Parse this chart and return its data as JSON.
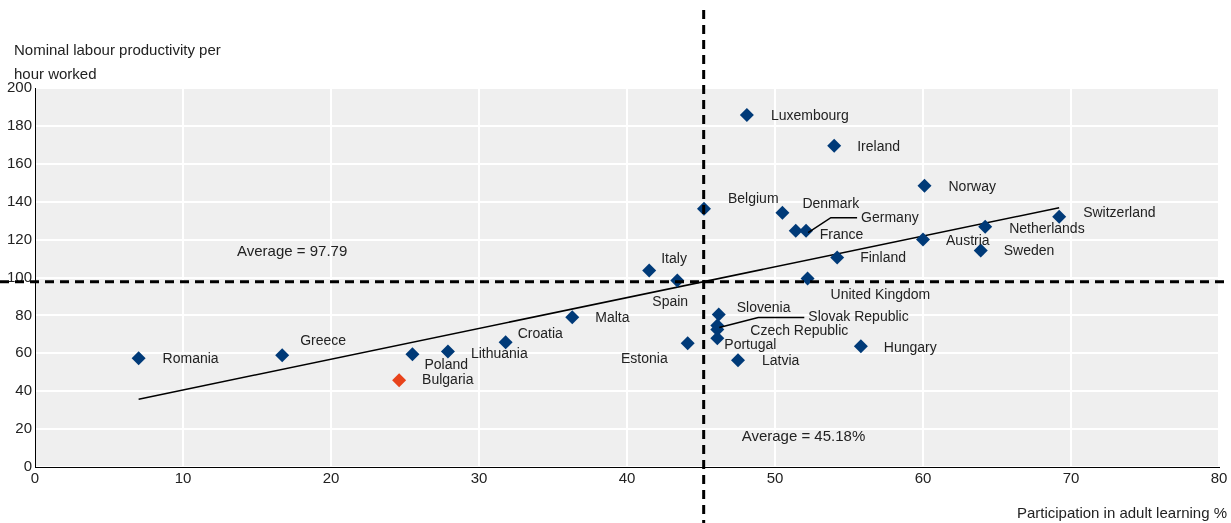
{
  "chart_data": {
    "type": "scatter",
    "xlabel": "Participation in adult learning %",
    "ylabel": "Nominal labour productivity per hour worked",
    "xlim": [
      0,
      80
    ],
    "xticks": [
      0,
      10,
      20,
      30,
      40,
      50,
      60,
      70,
      80
    ],
    "ylim": [
      0,
      200
    ],
    "yticks": [
      0,
      20,
      40,
      60,
      80,
      100,
      120,
      140,
      160,
      180,
      200
    ],
    "grid": true,
    "legend": false,
    "series": [
      {
        "marker": "diamond",
        "color": "#003a78",
        "colors": [
          "#003a78",
          "#003a78",
          "#003a78",
          "#e8431b",
          "#003a78",
          "#003a78",
          "#003a78",
          "#003a78",
          "#003a78",
          "#003a78",
          "#003a78",
          "#003a78",
          "#003a78",
          "#003a78",
          "#003a78",
          "#003a78",
          "#003a78",
          "#003a78",
          "#003a78",
          "#003a78",
          "#003a78",
          "#003a78",
          "#003a78",
          "#003a78",
          "#003a78",
          "#003a78",
          "#003a78",
          "#003a78",
          "#003a78"
        ],
        "x": [
          7.0,
          16.7,
          25.5,
          24.6,
          27.9,
          31.8,
          36.3,
          41.5,
          43.4,
          44.1,
          45.2,
          50.5,
          51.4,
          52.1,
          54.2,
          52.2,
          48.1,
          54.0,
          60.1,
          60.0,
          63.9,
          64.2,
          69.2,
          46.2,
          46.1,
          46.1,
          46.1,
          47.5,
          55.8
        ],
        "values": [
          57.4,
          59,
          59.5,
          45.8,
          61,
          65.8,
          79,
          103.7,
          98.4,
          65.3,
          136.3,
          134.2,
          124.7,
          124.7,
          110.5,
          99.5,
          185.8,
          169.5,
          148.4,
          120,
          114.2,
          126.8,
          132.1,
          80.5,
          74.7,
          72.6,
          67.9,
          56.3,
          63.7
        ]
      },
      {
        "type": "line",
        "color": "#000000",
        "x": [
          7.0,
          69.2
        ],
        "values": [
          35.8,
          136.8
        ]
      }
    ],
    "ref_lines": [
      {
        "axis": "y",
        "value": 97.79,
        "label": "Average = 97.79",
        "line_style": "dashed",
        "color": "#000000"
      },
      {
        "axis": "x",
        "value": 45.18,
        "label": "Average = 45.18%",
        "line_style": "dashed",
        "color": "#000000"
      }
    ],
    "annotations": [
      {
        "text": "Romania",
        "x": 7.0,
        "y": 57.4
      },
      {
        "text": "Greece",
        "x": 16.7,
        "y": 59
      },
      {
        "text": "Poland",
        "x": 25.5,
        "y": 59.5
      },
      {
        "text": "Bulgaria",
        "x": 24.6,
        "y": 45.8
      },
      {
        "text": "Lithuania",
        "x": 27.9,
        "y": 61
      },
      {
        "text": "Croatia",
        "x": 31.8,
        "y": 65.8
      },
      {
        "text": "Malta",
        "x": 36.3,
        "y": 79
      },
      {
        "text": "Italy",
        "x": 41.5,
        "y": 103.7
      },
      {
        "text": "Spain",
        "x": 43.4,
        "y": 98.4
      },
      {
        "text": "Estonia",
        "x": 44.1,
        "y": 65.3
      },
      {
        "text": "Belgium",
        "x": 45.2,
        "y": 136.3
      },
      {
        "text": "Denmark",
        "x": 50.5,
        "y": 134.2
      },
      {
        "text": "France",
        "x": 51.4,
        "y": 124.7
      },
      {
        "text": "Germany",
        "x": 52.1,
        "y": 124.7
      },
      {
        "text": "Finland",
        "x": 54.2,
        "y": 110.5
      },
      {
        "text": "United Kingdom",
        "x": 52.2,
        "y": 99.5
      },
      {
        "text": "Luxembourg",
        "x": 48.1,
        "y": 185.8
      },
      {
        "text": "Ireland",
        "x": 54.0,
        "y": 169.5
      },
      {
        "text": "Norway",
        "x": 60.1,
        "y": 148.4
      },
      {
        "text": "Austria",
        "x": 60.0,
        "y": 120
      },
      {
        "text": "Sweden",
        "x": 63.9,
        "y": 114.2
      },
      {
        "text": "Netherlands",
        "x": 64.2,
        "y": 126.8
      },
      {
        "text": "Switzerland",
        "x": 69.2,
        "y": 132.1
      },
      {
        "text": "Slovenia",
        "x": 46.2,
        "y": 80.5
      },
      {
        "text": "Slovak Republic",
        "x": 46.1,
        "y": 74.7
      },
      {
        "text": "Czech Republic",
        "x": 46.1,
        "y": 72.6
      },
      {
        "text": "Portugal",
        "x": 46.1,
        "y": 67.9
      },
      {
        "text": "Latvia",
        "x": 47.5,
        "y": 56.3
      },
      {
        "text": "Hungary",
        "x": 55.8,
        "y": 63.7
      }
    ]
  }
}
